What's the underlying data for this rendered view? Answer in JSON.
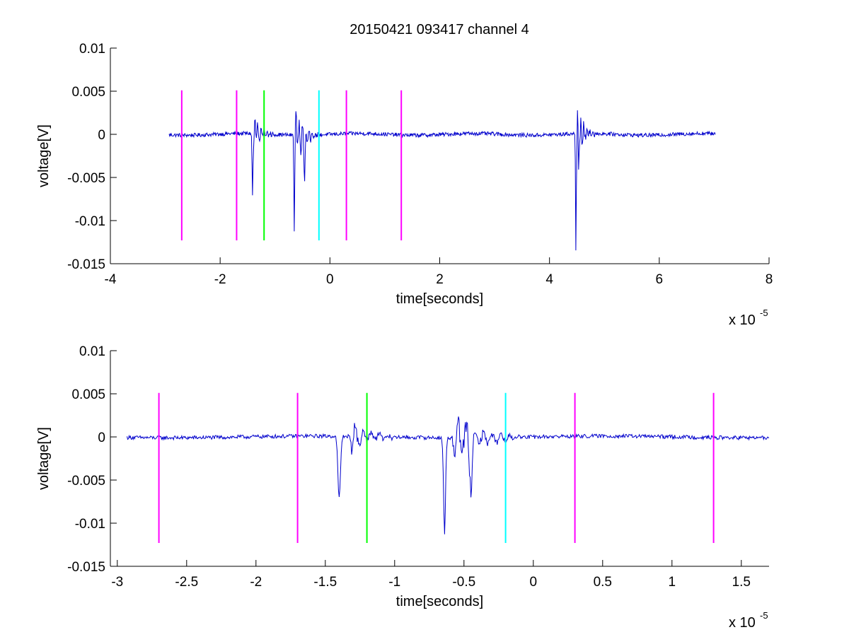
{
  "figure_title": "20150421 093417 channel 4",
  "chart_data": [
    {
      "type": "line",
      "title": "20150421 093417 channel 4",
      "xlabel": "time[seconds]",
      "ylabel": "voltage[V]",
      "x_exponent_label": "x 10",
      "x_exponent": "-5",
      "xlim": [
        -4e-05,
        8e-05
      ],
      "ylim": [
        -0.015,
        0.01
      ],
      "xticks": [
        -4e-05,
        -2e-05,
        0,
        2e-05,
        4e-05,
        6e-05,
        8e-05
      ],
      "xtick_labels": [
        "-4",
        "-2",
        "0",
        "2",
        "4",
        "6",
        "8"
      ],
      "yticks": [
        0.01,
        0.005,
        0,
        -0.005,
        -0.01,
        -0.015
      ],
      "ytick_labels": [
        "0.01",
        "0.005",
        "0",
        "-0.005",
        "-0.01",
        "-0.015"
      ],
      "grid": false,
      "signal": {
        "color": "#0000cc",
        "x_range": [
          -2.93e-05,
          7.02e-05
        ],
        "step": 1e-07,
        "bursts": [
          {
            "t": -1.38e-05,
            "a": 0.0028,
            "d": 1.2e-06,
            "f": 1800000
          },
          {
            "t": -6.3e-06,
            "a": 0.0044,
            "d": 1.5e-06,
            "f": 1700000
          },
          {
            "t": 4.5e-05,
            "a": 0.004,
            "d": 1.3e-06,
            "f": 1800000
          }
        ],
        "spikes": [
          {
            "t": -1.41e-05,
            "v": -0.0072,
            "w": 1.2e-07
          },
          {
            "t": -6.5e-06,
            "v": -0.0112,
            "w": 1e-07
          },
          {
            "t": -4.6e-06,
            "v": -0.0048,
            "w": 1.5e-07
          },
          {
            "t": 4.48e-05,
            "v": -0.0107,
            "w": 9e-08
          },
          {
            "t": 4.53e-05,
            "v": -0.0035,
            "w": 1.2e-07
          }
        ]
      },
      "markers": [
        {
          "x": -2.7e-05,
          "color": "#ff00ff"
        },
        {
          "x": -1.7e-05,
          "color": "#ff00ff"
        },
        {
          "x": -1.2e-05,
          "color": "#00ff00"
        },
        {
          "x": -2e-06,
          "color": "#00ffff"
        },
        {
          "x": 3e-06,
          "color": "#ff00ff"
        },
        {
          "x": 1.3e-05,
          "color": "#ff00ff"
        }
      ],
      "marker_range": [
        -0.0123,
        0.0051
      ]
    },
    {
      "type": "line",
      "title": "",
      "xlabel": "time[seconds]",
      "ylabel": "voltage[V]",
      "x_exponent_label": "x 10",
      "x_exponent": "-5",
      "xlim": [
        -3.05e-05,
        1.7e-05
      ],
      "ylim": [
        -0.015,
        0.01
      ],
      "xticks": [
        -3e-05,
        -2.5e-05,
        -2e-05,
        -1.5e-05,
        -1e-05,
        -5e-06,
        0,
        5e-06,
        1e-05,
        1.5e-05
      ],
      "xtick_labels": [
        "-3",
        "-2.5",
        "-2",
        "-1.5",
        "-1",
        "-0.5",
        "0",
        "0.5",
        "1",
        "1.5"
      ],
      "yticks": [
        0.01,
        0.005,
        0,
        -0.005,
        -0.01,
        -0.015
      ],
      "ytick_labels": [
        "0.01",
        "0.005",
        "0",
        "-0.005",
        "-0.01",
        "-0.015"
      ],
      "grid": false,
      "signal": {
        "color": "#0000cc",
        "x_range": [
          -2.93e-05,
          1.7e-05
        ],
        "step": 5e-08,
        "bursts": [
          {
            "t": -1.3e-05,
            "a": 0.0022,
            "d": 1.3e-06,
            "f": 1700000
          },
          {
            "t": -5.6e-06,
            "a": 0.0042,
            "d": 1.6e-06,
            "f": 1600000
          }
        ],
        "spikes": [
          {
            "t": -1.4e-05,
            "v": -0.0072,
            "w": 1.3e-07
          },
          {
            "t": -6.4e-06,
            "v": -0.0112,
            "w": 1e-07
          },
          {
            "t": -4.5e-06,
            "v": -0.0048,
            "w": 1.5e-07
          }
        ]
      },
      "markers": [
        {
          "x": -2.7e-05,
          "color": "#ff00ff"
        },
        {
          "x": -1.7e-05,
          "color": "#ff00ff"
        },
        {
          "x": -1.2e-05,
          "color": "#00ff00"
        },
        {
          "x": -2e-06,
          "color": "#00ffff"
        },
        {
          "x": 3e-06,
          "color": "#ff00ff"
        },
        {
          "x": 1.3e-05,
          "color": "#ff00ff"
        }
      ],
      "marker_range": [
        -0.0123,
        0.0051
      ]
    }
  ]
}
